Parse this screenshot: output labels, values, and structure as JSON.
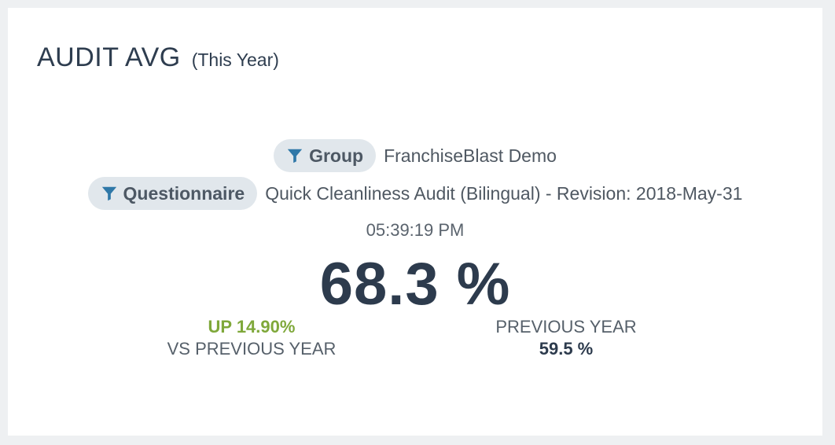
{
  "header": {
    "title": "AUDIT AVG",
    "subtitle": "(This Year)"
  },
  "filters": [
    {
      "label": "Group",
      "value": "FranchiseBlast Demo",
      "icon": "filter-icon"
    },
    {
      "label": "Questionnaire",
      "value": "Quick Cleanliness Audit (Bilingual) - Revision: 2018-May-31",
      "icon": "filter-icon"
    }
  ],
  "time": "05:39:19 PM",
  "main_value": "68.3 %",
  "comparison": {
    "change_label": "UP 14.90%",
    "change_caption": "VS PREVIOUS YEAR",
    "previous_caption": "PREVIOUS YEAR",
    "previous_value": "59.5 %"
  },
  "colors": {
    "accent_positive": "#7fa83a",
    "title": "#2e3d4f",
    "chip_background": "#e1e7ec"
  }
}
